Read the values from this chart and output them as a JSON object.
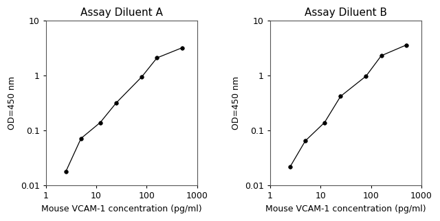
{
  "panel_a": {
    "title": "Assay Diluent A",
    "x": [
      2.5,
      5,
      12,
      25,
      80,
      160,
      500
    ],
    "y": [
      0.018,
      0.072,
      0.14,
      0.32,
      0.95,
      2.1,
      3.2
    ]
  },
  "panel_b": {
    "title": "Assay Diluent B",
    "x": [
      2.5,
      5,
      12,
      25,
      80,
      160,
      500
    ],
    "y": [
      0.022,
      0.065,
      0.14,
      0.42,
      0.98,
      2.3,
      3.6
    ]
  },
  "xlabel": "Mouse VCAM-1 concentration (pg/ml)",
  "ylabel": "OD=450 nm",
  "xlim": [
    1,
    1000
  ],
  "ylim": [
    0.01,
    10
  ],
  "xticks": [
    1,
    10,
    100,
    1000
  ],
  "xtick_labels": [
    "1",
    "10",
    "100",
    "1000"
  ],
  "yticks": [
    0.01,
    0.1,
    1,
    10
  ],
  "ytick_labels": [
    "0.01",
    "0.1",
    "1",
    "10"
  ],
  "bg_color": "#ffffff",
  "line_color": "#000000",
  "marker_color": "#000000",
  "title_fontsize": 11,
  "label_fontsize": 9,
  "tick_fontsize": 9
}
